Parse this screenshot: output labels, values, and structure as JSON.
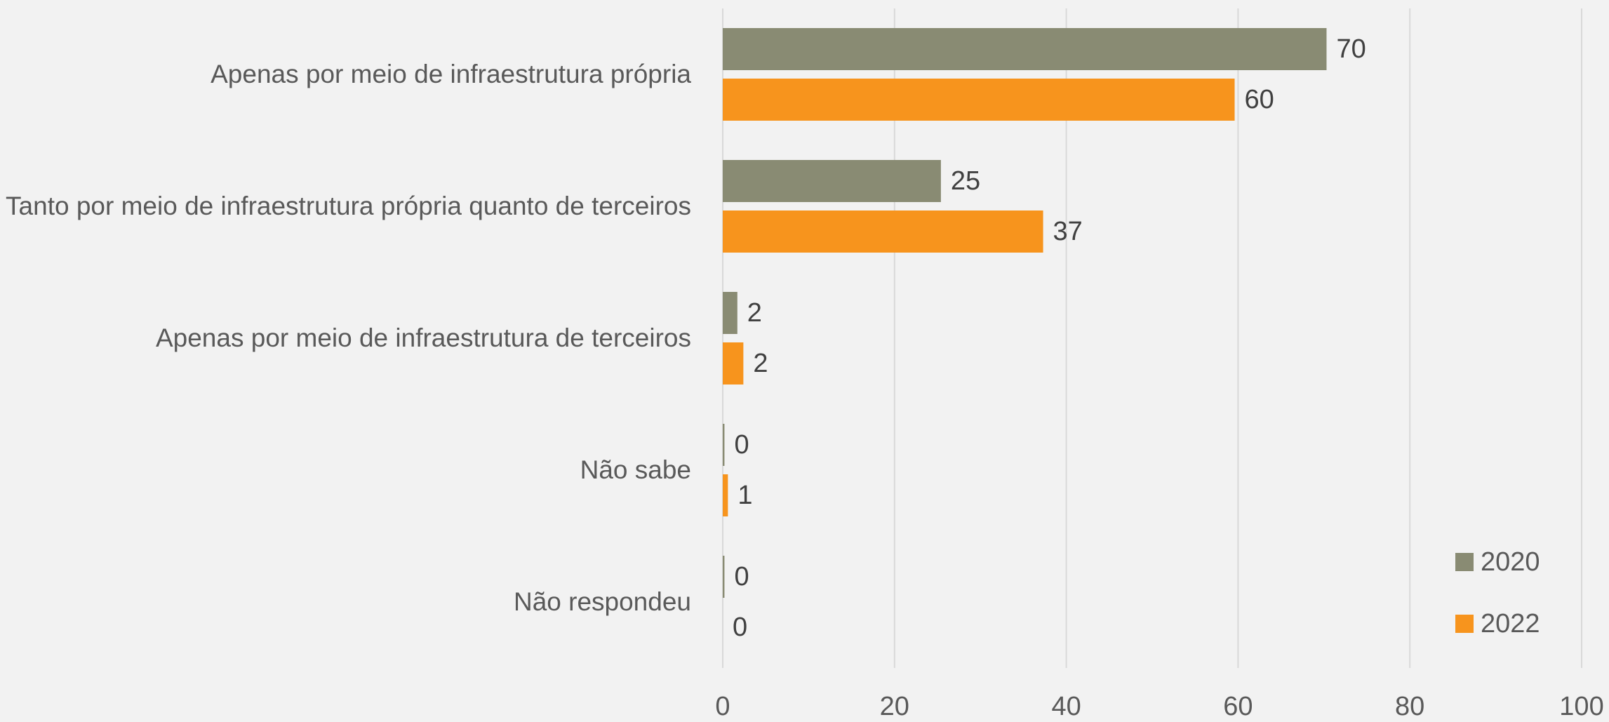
{
  "chart_data": {
    "type": "hbar",
    "categories": [
      "Apenas por meio de infraestrutura própria",
      "Tanto por meio de infraestrutura própria quanto de terceiros",
      "Apenas por meio de infraestrutura de terceiros",
      "Não sabe",
      "Não respondeu"
    ],
    "series": [
      {
        "name": "2020",
        "color": "#898b73",
        "values": [
          70.3,
          25.4,
          1.7,
          0.2,
          0.2
        ],
        "value_labels": [
          "70",
          "25",
          "2",
          "0",
          "0"
        ]
      },
      {
        "name": "2022",
        "color": "#f7941d",
        "values": [
          59.6,
          37.3,
          2.4,
          0.6,
          0
        ],
        "value_labels": [
          "60",
          "37",
          "2",
          "1",
          "0"
        ]
      }
    ],
    "xlim": [
      0,
      100
    ],
    "xticks": [
      0,
      20,
      40,
      60,
      80,
      100
    ],
    "grid": true,
    "legend": "lower right"
  }
}
